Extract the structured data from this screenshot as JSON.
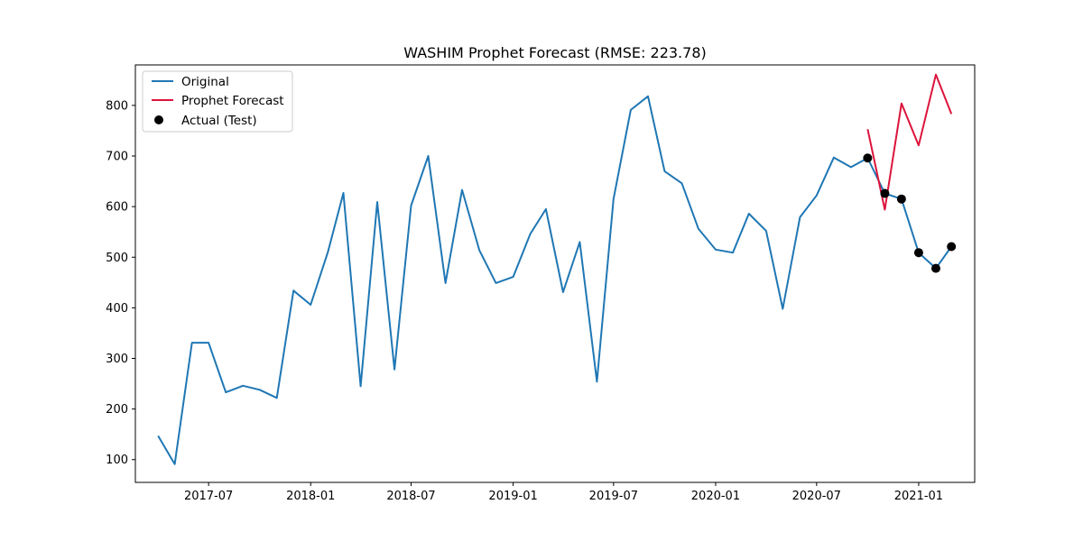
{
  "chart_data": {
    "type": "line",
    "title": "WASHIM Prophet Forecast (RMSE: 223.78)",
    "xlabel": "",
    "ylabel": "",
    "ylim": [
      55,
      880
    ],
    "xlim": [
      "2017-02-19",
      "2021-04-12"
    ],
    "x_ticks": [
      "2017-07",
      "2018-01",
      "2018-07",
      "2019-01",
      "2019-07",
      "2020-01",
      "2020-07",
      "2021-01"
    ],
    "y_ticks": [
      100,
      200,
      300,
      400,
      500,
      600,
      700,
      800
    ],
    "grid": false,
    "legend_position": "top-left",
    "colors": {
      "original": "#1f77b4",
      "forecast": "#dc143c",
      "actual": "#000000"
    },
    "series": [
      {
        "name": "Original",
        "kind": "line",
        "x": [
          "2017-04",
          "2017-05",
          "2017-06",
          "2017-07",
          "2017-08",
          "2017-09",
          "2017-10",
          "2017-11",
          "2017-12",
          "2018-01",
          "2018-02",
          "2018-03",
          "2018-04",
          "2018-05",
          "2018-06",
          "2018-07",
          "2018-08",
          "2018-09",
          "2018-10",
          "2018-11",
          "2018-12",
          "2019-01",
          "2019-02",
          "2019-03",
          "2019-04",
          "2019-05",
          "2019-06",
          "2019-07",
          "2019-08",
          "2019-09",
          "2019-10",
          "2019-11",
          "2019-12",
          "2020-01",
          "2020-02",
          "2020-03",
          "2020-04",
          "2020-05",
          "2020-06",
          "2020-07",
          "2020-08",
          "2020-09",
          "2020-10",
          "2020-11",
          "2020-12",
          "2021-01",
          "2021-02",
          "2021-03"
        ],
        "values": [
          147,
          91,
          331,
          331,
          233,
          246,
          238,
          222,
          434,
          406,
          510,
          627,
          245,
          609,
          278,
          602,
          700,
          449,
          633,
          514,
          449,
          461,
          546,
          595,
          431,
          530,
          254,
          615,
          791,
          818,
          670,
          646,
          556,
          515,
          509,
          586,
          552,
          398,
          579,
          622,
          697,
          678,
          696,
          626,
          615,
          509,
          478,
          521
        ]
      },
      {
        "name": "Prophet Forecast",
        "kind": "line",
        "x": [
          "2020-10",
          "2020-11",
          "2020-12",
          "2021-01",
          "2021-02",
          "2021-03"
        ],
        "values": [
          753,
          594,
          804,
          721,
          861,
          783
        ]
      },
      {
        "name": "Actual (Test)",
        "kind": "scatter",
        "x": [
          "2020-10",
          "2020-11",
          "2020-12",
          "2021-01",
          "2021-02",
          "2021-03"
        ],
        "values": [
          696,
          626,
          615,
          509,
          478,
          521
        ]
      }
    ]
  }
}
